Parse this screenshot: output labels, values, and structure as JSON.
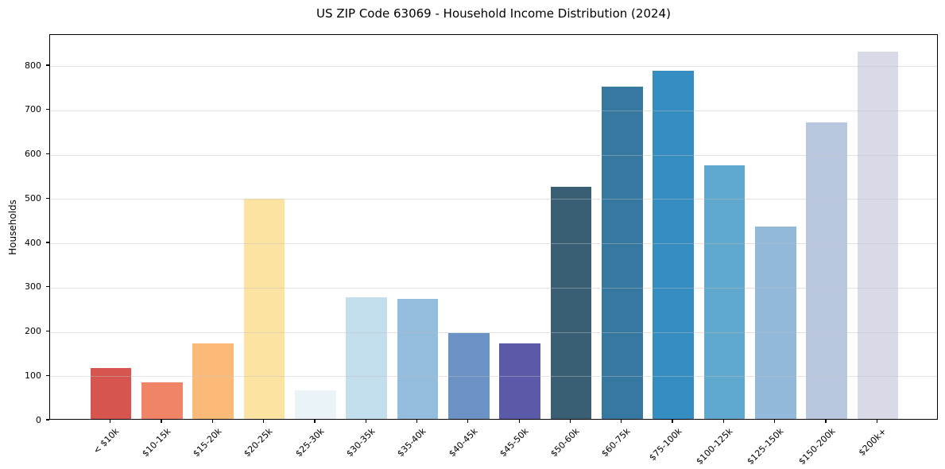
{
  "chart_data": {
    "type": "bar",
    "title": "US ZIP Code 63069 - Household Income Distribution (2024)",
    "xlabel": "",
    "ylabel": "Households",
    "categories": [
      "< $10k",
      "$10-15k",
      "$15-20k",
      "$20-25k",
      "$25-30k",
      "$30-35k",
      "$35-40k",
      "$40-45k",
      "$45-50k",
      "$50-60k",
      "$60-75k",
      "$75-100k",
      "$100-125k",
      "$125-150k",
      "$150-200k",
      "$200k+"
    ],
    "values": [
      115,
      82,
      170,
      497,
      65,
      274,
      270,
      194,
      170,
      524,
      750,
      786,
      572,
      434,
      670,
      828
    ],
    "bar_colors": [
      "#d6564f",
      "#f08466",
      "#fcba79",
      "#fde3a2",
      "#e9f3f8",
      "#c3dfee",
      "#93bddc",
      "#6b92c5",
      "#5b5aa9",
      "#3a5f74",
      "#36789f",
      "#368dc1",
      "#5fa8ce",
      "#92b8da",
      "#bac8df",
      "#d8dae8"
    ],
    "yticks": [
      0,
      100,
      200,
      300,
      400,
      500,
      600,
      700,
      800
    ],
    "ylim": [
      0,
      870
    ],
    "grid": "horizontal",
    "legend": "none",
    "background": "#ffffff",
    "spine_color": "#000000"
  }
}
